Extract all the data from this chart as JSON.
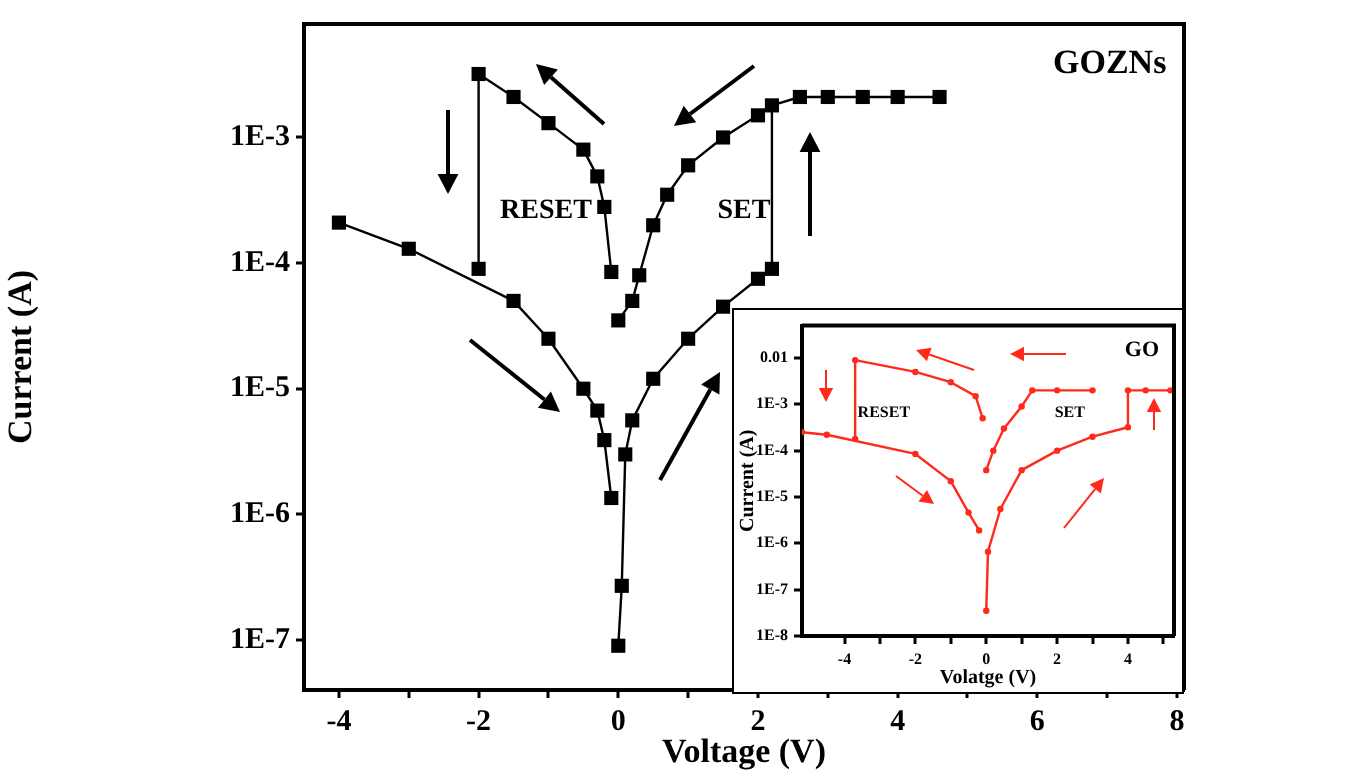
{
  "chart_data": [
    {
      "type": "line",
      "xlabel": "Voltage (V)",
      "ylabel": "Current (A)",
      "log": "y",
      "marker": "square",
      "line_style": "solid",
      "xlim": [
        -4.5,
        8.1
      ],
      "xticks": [
        -4,
        {
          "value": -3,
          "label": null
        },
        -2,
        {
          "value": -1,
          "label": null
        },
        0,
        {
          "value": 1,
          "label": null
        },
        2,
        {
          "value": 3,
          "label": null
        },
        4,
        {
          "value": 5,
          "label": null
        },
        6,
        {
          "value": 7,
          "label": null
        },
        8
      ],
      "ylim": [
        4e-08,
        0.008
      ],
      "yticks": [
        {
          "value": 1e-07,
          "label": "1E-7"
        },
        {
          "value": 1e-06,
          "label": "1E-6"
        },
        {
          "value": 1e-05,
          "label": "1E-5"
        },
        {
          "value": 0.0001,
          "label": "1E-4"
        },
        {
          "value": 0.001,
          "label": "1E-3"
        }
      ],
      "annotations": [
        "RESET",
        "SET",
        "GOZNs"
      ],
      "series": [
        {
          "color": "#000000",
          "x": [
            0,
            0.05,
            0.1,
            0.2,
            0.5,
            1.0,
            1.5,
            2.0,
            2.2,
            2.2,
            2.6,
            3.0,
            3.5,
            4.0,
            4.6
          ],
          "values": [
            9e-08,
            2.7e-07,
            3e-06,
            5.6e-06,
            1.2e-05,
            2.5e-05,
            4.5e-05,
            7.5e-05,
            9e-05,
            0.0018,
            0.0021,
            0.0021,
            0.0021,
            0.0021,
            0.0021
          ]
        },
        {
          "color": "#000000",
          "x": [
            0,
            0.2,
            0.3,
            0.5,
            0.7,
            1.0,
            1.5,
            2.0
          ],
          "values": [
            3.5e-05,
            5e-05,
            8e-05,
            0.0002,
            0.00035,
            0.0006,
            0.001,
            0.0015
          ]
        },
        {
          "color": "#000000",
          "x": [
            -2.0,
            -2.0,
            -1.5,
            -1.0,
            -0.5,
            -0.3,
            -0.2,
            -0.1
          ],
          "values": [
            9e-05,
            0.0032,
            0.0021,
            0.0013,
            0.0008,
            0.00049,
            0.00028,
            8.5e-05
          ]
        },
        {
          "color": "#000000",
          "x": [
            -4.0,
            -3.0,
            -1.5,
            -1.0,
            -0.5,
            -0.3,
            -0.2,
            -0.1
          ],
          "values": [
            0.00021,
            0.00013,
            5e-05,
            2.5e-05,
            1e-05,
            6.7e-06,
            3.9e-06,
            1.35e-06
          ]
        }
      ]
    },
    {
      "type": "line",
      "xlabel": "Volatge (V)",
      "ylabel": "Current (A)",
      "log": "y",
      "marker": "circle",
      "line_style": "solid",
      "xlim": [
        -5.2,
        5.3
      ],
      "xticks": [
        -4,
        {
          "value": -3,
          "label": null
        },
        -2,
        {
          "value": -1,
          "label": null
        },
        0,
        {
          "value": 1,
          "label": null
        },
        2,
        {
          "value": 3,
          "label": null
        },
        4,
        {
          "value": 5,
          "label": null
        }
      ],
      "ylim": [
        1e-08,
        0.05
      ],
      "yticks": [
        {
          "value": 1e-08,
          "label": "1E-8"
        },
        {
          "value": 1e-07,
          "label": "1E-7"
        },
        {
          "value": 1e-06,
          "label": "1E-6"
        },
        {
          "value": 1e-05,
          "label": "1E-5"
        },
        {
          "value": 0.0001,
          "label": "1E-4"
        },
        {
          "value": 0.001,
          "label": "1E-3"
        },
        {
          "value": 0.01,
          "label": "0.01"
        }
      ],
      "annotations": [
        "RESET",
        "SET",
        "GO"
      ],
      "series": [
        {
          "color": "#ff2a1a",
          "x": [
            0,
            0.05,
            0.4,
            1.0,
            2.0,
            3.0,
            4.0,
            4.0,
            4.5,
            5.2
          ],
          "values": [
            3.5e-08,
            6.6e-07,
            5.5e-06,
            3.8e-05,
            0.0001,
            0.0002,
            0.00032,
            0.002,
            0.002,
            0.002
          ]
        },
        {
          "color": "#ff2a1a",
          "x": [
            0,
            0.2,
            0.5,
            1.0,
            1.3,
            2.0,
            3.0
          ],
          "values": [
            3.8e-05,
            0.0001,
            0.0003,
            0.0009,
            0.002,
            0.002,
            0.002
          ]
        },
        {
          "color": "#ff2a1a",
          "x": [
            -3.7,
            -3.7,
            -2.0,
            -1.0,
            -0.3,
            -0.1
          ],
          "values": [
            0.00018,
            0.009,
            0.005,
            0.003,
            0.0015,
            0.0005
          ]
        },
        {
          "color": "#ff2a1a",
          "x": [
            -5.2,
            -4.5,
            -2.0,
            -1.0,
            -0.5,
            -0.2
          ],
          "values": [
            0.00025,
            0.00022,
            8.5e-05,
            2.2e-05,
            4.6e-06,
            1.9e-06
          ]
        }
      ]
    }
  ]
}
